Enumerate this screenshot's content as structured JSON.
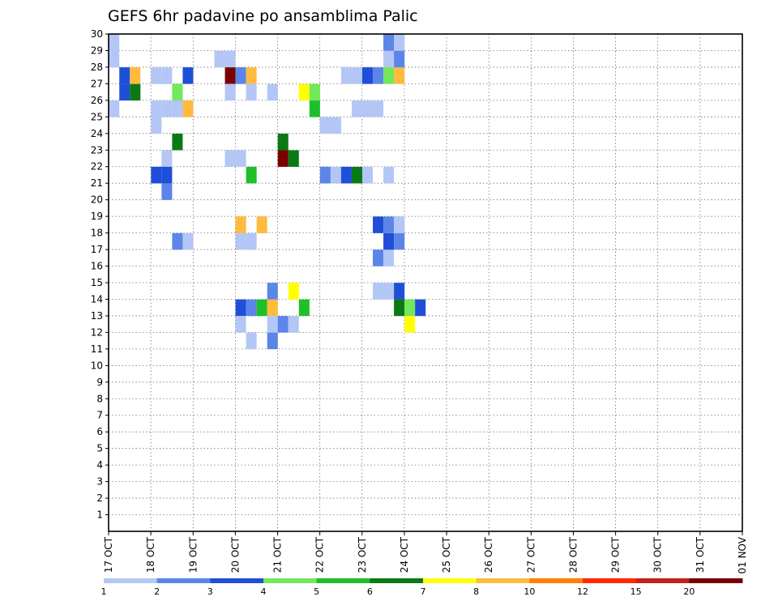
{
  "chart_data": {
    "type": "heatmap",
    "title": "GEFS 6hr padavine po ansamblima Palic",
    "xlabel": "",
    "ylabel": "",
    "x_ticks": [
      "17 OCT",
      "18 OCT",
      "19 OCT",
      "20 OCT",
      "21 OCT",
      "22 OCT",
      "23 OCT",
      "24 OCT",
      "25 OCT",
      "26 OCT",
      "27 OCT",
      "28 OCT",
      "29 OCT",
      "30 OCT",
      "31 OCT",
      "01 NOV"
    ],
    "y_ticks": [
      1,
      2,
      3,
      4,
      5,
      6,
      7,
      8,
      9,
      10,
      11,
      12,
      13,
      14,
      15,
      16,
      17,
      18,
      19,
      20,
      21,
      22,
      23,
      24,
      25,
      26,
      27,
      28,
      29,
      30
    ],
    "xlim": [
      0,
      60
    ],
    "ylim": [
      0,
      30
    ],
    "grid": "dotted",
    "colorbar": {
      "labels": [
        "1",
        "2",
        "3",
        "4",
        "5",
        "6",
        "7",
        "8",
        "10",
        "12",
        "15",
        "20"
      ],
      "colors": [
        "#b3c6f5",
        "#5b85e8",
        "#1f4fd8",
        "#72e85a",
        "#1fbf2a",
        "#0b7a14",
        "#ffff00",
        "#ffbb3d",
        "#ff8000",
        "#ff2a00",
        "#c81e1e",
        "#7a0000"
      ]
    },
    "cells": [
      [
        0,
        30,
        0
      ],
      [
        0,
        29,
        0
      ],
      [
        1,
        28,
        2
      ],
      [
        1,
        27,
        2
      ],
      [
        0,
        26,
        0
      ],
      [
        2,
        27,
        5
      ],
      [
        2,
        28,
        7
      ],
      [
        4,
        28,
        0
      ],
      [
        5,
        28,
        0
      ],
      [
        4,
        26,
        0
      ],
      [
        5,
        26,
        0
      ],
      [
        7,
        28,
        2
      ],
      [
        6,
        27,
        3
      ],
      [
        6,
        26,
        0
      ],
      [
        7,
        26,
        7
      ],
      [
        5,
        23,
        0
      ],
      [
        4,
        22,
        2
      ],
      [
        5,
        22,
        2
      ],
      [
        5,
        21,
        1
      ],
      [
        6,
        18,
        1
      ],
      [
        7,
        18,
        0
      ],
      [
        6,
        24,
        5
      ],
      [
        4,
        25,
        0
      ],
      [
        10,
        29,
        0
      ],
      [
        11,
        29,
        0
      ],
      [
        11,
        28,
        11
      ],
      [
        12,
        28,
        1
      ],
      [
        13,
        28,
        7
      ],
      [
        11,
        27,
        0
      ],
      [
        13,
        27,
        0
      ],
      [
        15,
        27,
        0
      ],
      [
        11,
        23,
        0
      ],
      [
        12,
        23,
        0
      ],
      [
        13,
        22,
        4
      ],
      [
        12,
        18,
        0
      ],
      [
        13,
        18,
        0
      ],
      [
        12,
        19,
        7
      ],
      [
        14,
        19,
        7
      ],
      [
        12,
        14,
        2
      ],
      [
        13,
        14,
        1
      ],
      [
        14,
        14,
        4
      ],
      [
        15,
        14,
        7
      ],
      [
        15,
        13,
        0
      ],
      [
        16,
        13,
        1
      ],
      [
        17,
        13,
        0
      ],
      [
        12,
        13,
        0
      ],
      [
        13,
        12,
        0
      ],
      [
        15,
        12,
        1
      ],
      [
        15,
        15,
        1
      ],
      [
        17,
        15,
        6
      ],
      [
        18,
        14,
        4
      ],
      [
        18,
        27,
        6
      ],
      [
        19,
        27,
        3
      ],
      [
        16,
        24,
        5
      ],
      [
        16,
        23,
        11
      ],
      [
        17,
        23,
        5
      ],
      [
        19,
        26,
        4
      ],
      [
        20,
        25,
        0
      ],
      [
        21,
        25,
        0
      ],
      [
        22,
        28,
        0
      ],
      [
        23,
        28,
        0
      ],
      [
        24,
        28,
        2
      ],
      [
        25,
        28,
        1
      ],
      [
        26,
        28,
        3
      ],
      [
        27,
        28,
        7
      ],
      [
        26,
        29,
        0
      ],
      [
        27,
        30,
        0
      ],
      [
        26,
        30,
        1
      ],
      [
        27,
        29,
        1
      ],
      [
        24,
        26,
        0
      ],
      [
        25,
        26,
        0
      ],
      [
        23,
        26,
        0
      ],
      [
        20,
        22,
        1
      ],
      [
        21,
        22,
        0
      ],
      [
        22,
        22,
        2
      ],
      [
        23,
        22,
        5
      ],
      [
        24,
        22,
        0
      ],
      [
        26,
        22,
        0
      ],
      [
        25,
        17,
        1
      ],
      [
        26,
        17,
        0
      ],
      [
        26,
        18,
        2
      ],
      [
        27,
        18,
        1
      ],
      [
        25,
        19,
        2
      ],
      [
        26,
        19,
        1
      ],
      [
        27,
        19,
        0
      ],
      [
        25,
        15,
        0
      ],
      [
        26,
        15,
        0
      ],
      [
        27,
        15,
        2
      ],
      [
        27,
        14,
        5
      ],
      [
        28,
        14,
        3
      ],
      [
        29,
        14,
        2
      ],
      [
        28,
        13,
        6
      ]
    ],
    "note": "cells are [x_slot_index, y_row, color_index]"
  }
}
